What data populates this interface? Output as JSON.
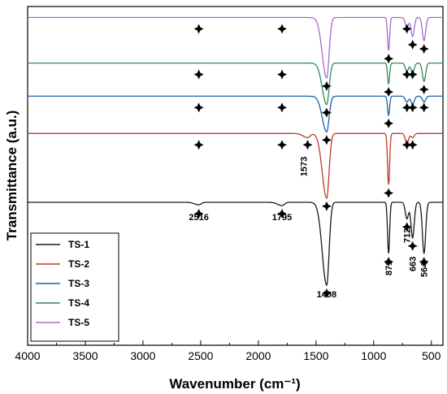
{
  "chart_data": {
    "type": "line",
    "xlabel": "Wavenumber (cm⁻¹)",
    "ylabel": "Transmittance (a.u.)",
    "xlim": [
      4000,
      400
    ],
    "x_reversed": true,
    "x_ticks": [
      "4000",
      "3500",
      "3000",
      "2500",
      "2000",
      "1500",
      "1000",
      "500"
    ],
    "x_tick_values": [
      4000,
      3500,
      3000,
      2500,
      2000,
      1500,
      1000,
      500
    ],
    "y_ticks_shown": false,
    "grid": false,
    "legend_position": "bottom-left",
    "marker_symbol": "✦",
    "series": [
      {
        "name": "TS-1",
        "color": "#1a1a1a",
        "baseline": 0.0,
        "peaks": [
          [
            2516,
            0.03
          ],
          [
            1795,
            0.04
          ],
          [
            1408,
            1.0
          ],
          [
            871,
            0.62
          ],
          [
            712,
            0.2
          ],
          [
            663,
            0.43
          ],
          [
            564,
            0.62
          ]
        ]
      },
      {
        "name": "TS-2",
        "color": "#c0392b",
        "baseline": 0.83,
        "peaks": [
          [
            1573,
            0.05
          ],
          [
            1408,
            0.78
          ],
          [
            871,
            0.62
          ],
          [
            712,
            0.12
          ],
          [
            663,
            0.05
          ]
        ]
      },
      {
        "name": "TS-3",
        "color": "#1f5fae",
        "baseline": 1.28,
        "peaks": [
          [
            1408,
            0.43
          ],
          [
            871,
            0.23
          ],
          [
            712,
            0.07
          ],
          [
            663,
            0.1
          ],
          [
            564,
            0.07
          ]
        ]
      },
      {
        "name": "TS-4",
        "color": "#2e8b57",
        "baseline": 1.68,
        "peaks": [
          [
            1408,
            0.5
          ],
          [
            871,
            0.25
          ],
          [
            712,
            0.1
          ],
          [
            663,
            0.12
          ],
          [
            564,
            0.22
          ]
        ]
      },
      {
        "name": "TS-5",
        "color": "#a66bd0",
        "baseline": 2.23,
        "peaks": [
          [
            1408,
            0.73
          ],
          [
            871,
            0.4
          ],
          [
            712,
            0.12
          ],
          [
            663,
            0.23
          ],
          [
            564,
            0.28
          ]
        ]
      }
    ],
    "peak_labels": [
      {
        "text": "2516",
        "x": 2516
      },
      {
        "text": "1795",
        "x": 1795
      },
      {
        "text": "1573",
        "x": 1573,
        "rotated": true
      },
      {
        "text": "1408",
        "x": 1408
      },
      {
        "text": "871",
        "x": 871,
        "rotated": true
      },
      {
        "text": "712",
        "x": 712,
        "rotated": true
      },
      {
        "text": "663",
        "x": 663,
        "rotated": true
      },
      {
        "text": "564",
        "x": 564,
        "rotated": true
      }
    ]
  }
}
